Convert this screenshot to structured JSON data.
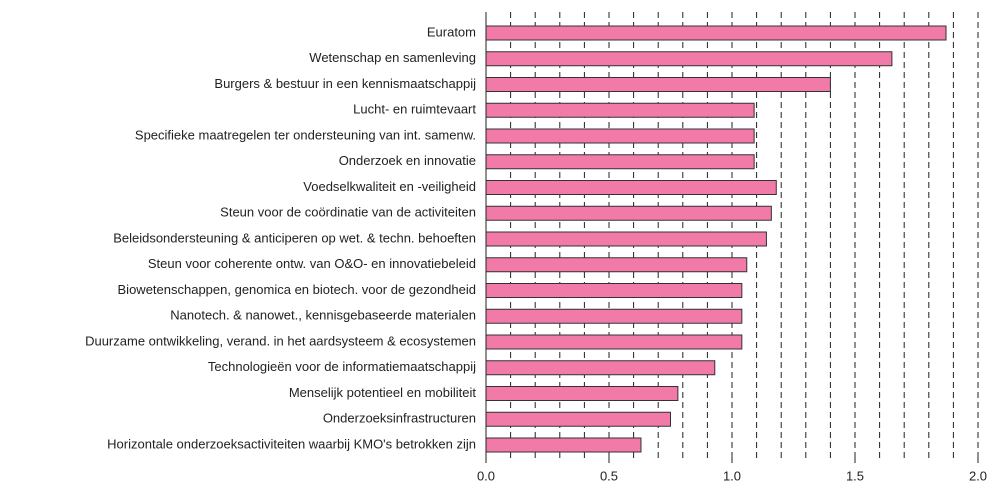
{
  "chart_data": {
    "type": "barh",
    "categories": [
      "Euratom",
      "Wetenschap en samenleving",
      "Burgers & bestuur in een kennismaatschappij",
      "Lucht- en ruimtevaart",
      "Specifieke maatregelen ter ondersteuning van int. samenw.",
      "Onderzoek en innovatie",
      "Voedselkwaliteit en -veiligheid",
      "Steun voor de coördinatie van de activiteiten",
      "Beleidsondersteuning & anticiperen op wet. & techn. behoeften",
      "Steun voor coherente ontw. van O&O- en innovatiebeleid",
      "Biowetenschappen, genomica en biotech. voor de gezondheid",
      "Nanotech. & nanowet., kennisgebaseerde materialen",
      "Duurzame ontwikkeling, verand. in het aardsysteem & ecosystemen",
      "Technologieën voor de informatiemaatschappij",
      "Menselijk potentieel en mobiliteit",
      "Onderzoeksinfrastructuren",
      "Horizontale onderzoeksactiviteiten waarbij KMO's betrokken zijn"
    ],
    "values": [
      1.87,
      1.65,
      1.4,
      1.09,
      1.09,
      1.09,
      1.18,
      1.16,
      1.14,
      1.06,
      1.04,
      1.04,
      1.04,
      0.93,
      0.78,
      0.75,
      0.63
    ],
    "color": "#f27aa8",
    "xlim": [
      0,
      2
    ],
    "xticks": [
      {
        "value": 0,
        "label": "0.0"
      },
      0.5,
      {
        "value": 1,
        "label": "1.0"
      },
      1.5,
      {
        "value": 2,
        "label": "2.0"
      }
    ],
    "grid_xticks": [
      0.1,
      0.2,
      0.3,
      0.4,
      0.5,
      0.6,
      0.7,
      0.8,
      0.9,
      1.0,
      1.1,
      1.2,
      1.3,
      1.4,
      1.5,
      1.6,
      1.7,
      1.8,
      1.9,
      2.0
    ],
    "grid": true
  }
}
